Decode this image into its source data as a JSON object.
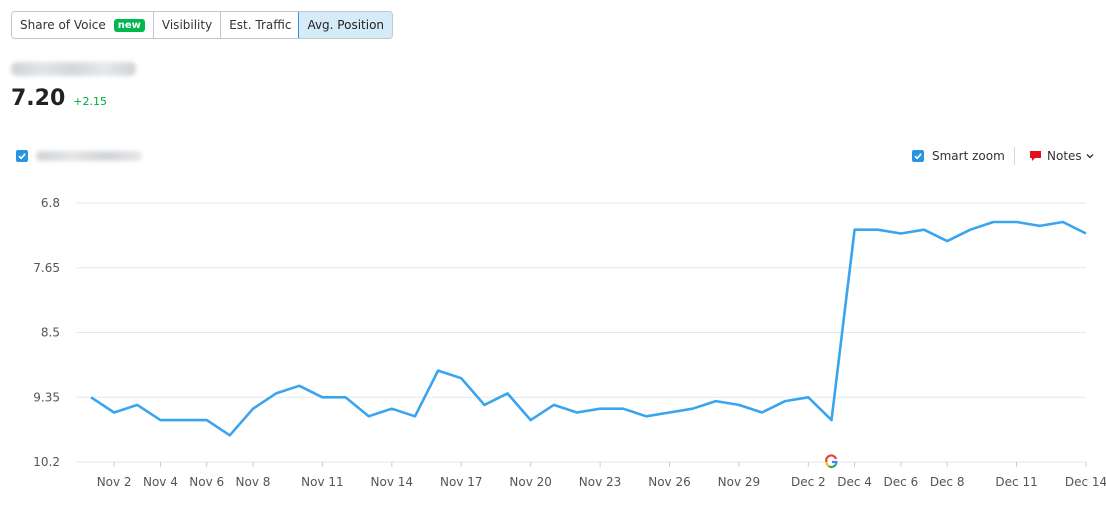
{
  "tabs": [
    {
      "label": "Share of Voice",
      "badge": "new",
      "active": false
    },
    {
      "label": "Visibility",
      "active": false
    },
    {
      "label": "Est. Traffic",
      "active": false
    },
    {
      "label": "Avg. Position",
      "active": true
    }
  ],
  "metric": {
    "value": "7.20",
    "delta": "+2.15"
  },
  "controls": {
    "smart_zoom_label": "Smart zoom",
    "smart_zoom_checked": true,
    "notes_label": "Notes"
  },
  "colors": {
    "line": "#3aa4ef",
    "accent": "#2b94e1",
    "badge": "#00b84d",
    "delta": "#00a83f",
    "notes_icon": "#e0101f"
  },
  "icons": {
    "checkbox": "checkmark-icon",
    "notes": "comment-icon",
    "dropdown": "chevron-down-icon",
    "google": "google-g-icon"
  },
  "chart_data": {
    "type": "line",
    "ylim": [
      6.8,
      10.2
    ],
    "y_reversed": true,
    "y_ticks": [
      "6.8",
      "7.65",
      "8.5",
      "9.35",
      "10.2"
    ],
    "x_ticks": [
      "Nov 2",
      "Nov 4",
      "Nov 6",
      "Nov 8",
      "Nov 11",
      "Nov 14",
      "Nov 17",
      "Nov 20",
      "Nov 23",
      "Nov 26",
      "Nov 29",
      "Dec 2",
      "Dec 4",
      "Dec 6",
      "Dec 8",
      "Dec 11",
      "Dec 14"
    ],
    "grid": true,
    "annotation": {
      "date": "Dec 3",
      "icon": "google-g-icon"
    },
    "series": [
      {
        "x": [
          "Nov 1",
          "Nov 2",
          "Nov 3",
          "Nov 4",
          "Nov 5",
          "Nov 6",
          "Nov 7",
          "Nov 8",
          "Nov 9",
          "Nov 10",
          "Nov 11",
          "Nov 12",
          "Nov 13",
          "Nov 14",
          "Nov 15",
          "Nov 16",
          "Nov 17",
          "Nov 18",
          "Nov 19",
          "Nov 20",
          "Nov 21",
          "Nov 22",
          "Nov 23",
          "Nov 24",
          "Nov 25",
          "Nov 26",
          "Nov 27",
          "Nov 28",
          "Nov 29",
          "Nov 30",
          "Dec 1",
          "Dec 2",
          "Dec 3",
          "Dec 4",
          "Dec 5",
          "Dec 6",
          "Dec 7",
          "Dec 8",
          "Dec 9",
          "Dec 10",
          "Dec 11",
          "Dec 12",
          "Dec 13",
          "Dec 14"
        ],
        "values": [
          9.35,
          9.55,
          9.45,
          9.65,
          9.65,
          9.65,
          9.85,
          9.5,
          9.3,
          9.2,
          9.35,
          9.35,
          9.6,
          9.5,
          9.6,
          9.0,
          9.1,
          9.45,
          9.3,
          9.65,
          9.45,
          9.55,
          9.5,
          9.5,
          9.6,
          9.55,
          9.5,
          9.4,
          9.45,
          9.55,
          9.4,
          9.35,
          9.65,
          7.15,
          7.15,
          7.2,
          7.15,
          7.3,
          7.15,
          7.05,
          7.05,
          7.1,
          7.05,
          7.2
        ]
      }
    ]
  }
}
